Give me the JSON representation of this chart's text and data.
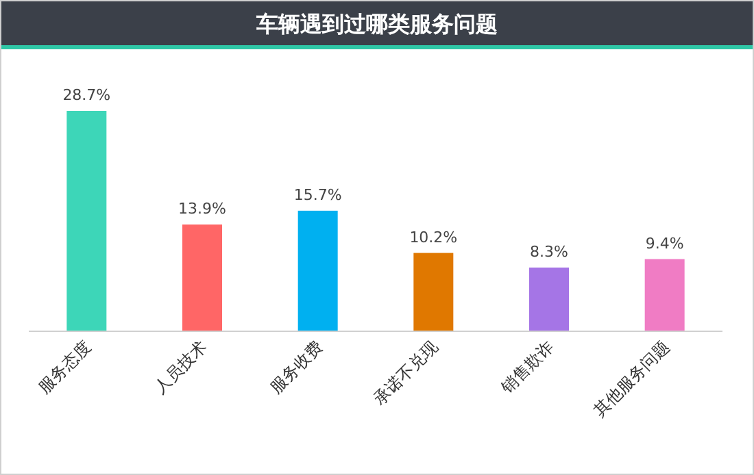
{
  "chart_data": {
    "type": "bar",
    "title": "车辆遇到过哪类服务问题",
    "categories": [
      "服务态度",
      "人员技术",
      "服务收费",
      "承诺不兑现",
      "销售欺诈",
      "其他服务问题"
    ],
    "values": [
      28.7,
      13.9,
      15.7,
      10.2,
      8.3,
      9.4
    ],
    "colors": [
      "#3dd6b8",
      "#ff6666",
      "#00b0f0",
      "#e07800",
      "#a575e6",
      "#f07cc4"
    ],
    "value_labels": [
      "28.7%",
      "13.9%",
      "15.7%",
      "10.2%",
      "8.3%",
      "9.4%"
    ]
  }
}
